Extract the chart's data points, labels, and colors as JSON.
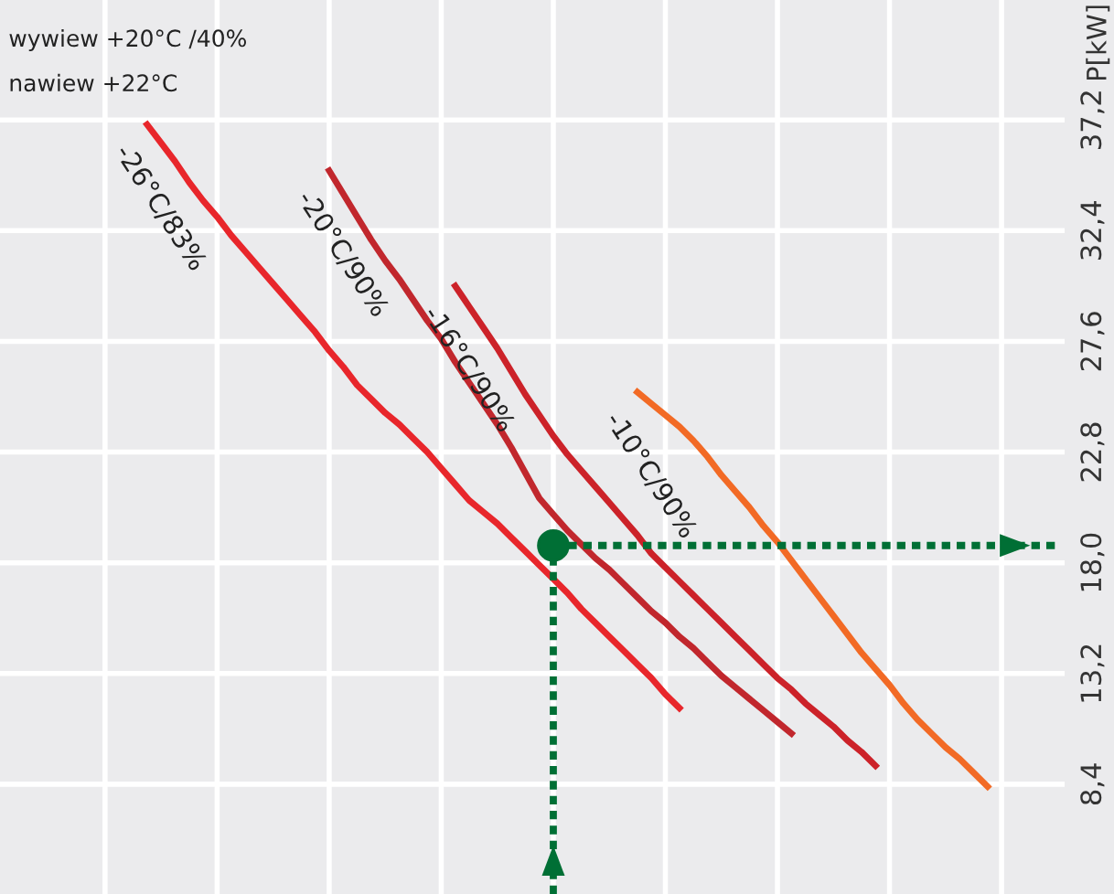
{
  "chart_data": {
    "type": "line",
    "ylabel": "P[kW]",
    "categories": [
      null,
      null,
      null,
      null,
      null,
      null,
      null,
      null,
      null,
      null,
      null,
      null,
      null,
      null,
      null,
      null,
      null,
      null,
      null,
      null,
      null,
      null,
      null,
      null,
      null,
      null,
      null,
      null,
      null,
      null,
      null,
      null,
      null,
      null,
      null,
      null,
      null,
      null,
      null,
      null,
      null,
      null,
      null,
      null,
      null,
      null,
      null,
      null,
      null,
      null,
      null,
      null,
      null,
      null,
      null,
      null,
      null,
      null,
      null,
      null,
      null,
      null,
      null,
      null,
      null,
      null,
      null,
      null,
      null,
      null,
      null,
      null,
      null,
      null,
      null,
      null
    ],
    "ylim": [
      3.64,
      42.4
    ],
    "yticks": [
      {
        "value": 8.4,
        "label": "8,4"
      },
      {
        "value": 13.2,
        "label": "13,2"
      },
      {
        "value": 18.0,
        "label": "18,0"
      },
      {
        "value": 22.8,
        "label": "22,8"
      },
      {
        "value": 27.6,
        "label": "27,6"
      },
      {
        "value": 32.4,
        "label": "32,4"
      },
      {
        "value": 37.2,
        "label": "37,2"
      }
    ],
    "tick_labels": "y",
    "grid": true,
    "legend": false,
    "marker": "none",
    "line_style": "solid",
    "series": [
      {
        "name": "-26°C/83%",
        "color": "#e8262b",
        "values": [
          null,
          null,
          null,
          null,
          null,
          null,
          null,
          null,
          null,
          null,
          37.0,
          36.2,
          35.4,
          34.5,
          33.7,
          33.0,
          32.2,
          31.5,
          30.8,
          30.1,
          29.4,
          28.7,
          28.0,
          27.2,
          26.5,
          25.7,
          25.1,
          24.5,
          24.0,
          23.4,
          22.8,
          22.1,
          21.4,
          20.7,
          20.2,
          19.7,
          19.1,
          18.5,
          17.9,
          17.3,
          16.7,
          16.0,
          15.4,
          14.8,
          14.2,
          13.6,
          13.0,
          12.3,
          11.7,
          null,
          null,
          null,
          null,
          null,
          null,
          null,
          null,
          null,
          null,
          null,
          null,
          null,
          null,
          null,
          null,
          null,
          null,
          null,
          null,
          null,
          null,
          null,
          null,
          null,
          null,
          null
        ]
      },
      {
        "name": "-20°C/90%",
        "color": "#c1272d",
        "values": [
          null,
          null,
          null,
          null,
          null,
          null,
          null,
          null,
          null,
          null,
          null,
          null,
          null,
          null,
          null,
          null,
          null,
          null,
          null,
          null,
          null,
          null,
          null,
          35.0,
          34.0,
          33.0,
          32.0,
          31.1,
          30.3,
          29.4,
          28.5,
          27.7,
          26.7,
          25.8,
          24.9,
          24.0,
          23.0,
          21.9,
          20.8,
          20.1,
          19.4,
          18.8,
          18.2,
          17.7,
          17.1,
          16.5,
          15.9,
          15.4,
          14.8,
          14.3,
          13.7,
          13.1,
          12.6,
          12.1,
          11.6,
          11.1,
          10.6,
          null,
          null,
          null,
          null,
          null,
          null,
          null,
          null,
          null,
          null,
          null,
          null,
          null,
          null,
          null,
          null,
          null,
          null,
          null
        ]
      },
      {
        "name": "-16°C/90%",
        "color": "#cc2229",
        "values": [
          null,
          null,
          null,
          null,
          null,
          null,
          null,
          null,
          null,
          null,
          null,
          null,
          null,
          null,
          null,
          null,
          null,
          null,
          null,
          null,
          null,
          null,
          null,
          null,
          null,
          null,
          null,
          null,
          null,
          null,
          null,
          null,
          30.0,
          29.1,
          28.2,
          27.3,
          26.3,
          25.3,
          24.4,
          23.5,
          22.7,
          22.0,
          21.3,
          20.6,
          19.9,
          19.2,
          18.4,
          17.8,
          17.2,
          16.6,
          16.0,
          15.4,
          14.8,
          14.2,
          13.6,
          13.0,
          12.5,
          11.9,
          11.4,
          10.9,
          10.3,
          9.8,
          9.2,
          null,
          null,
          null,
          null,
          null,
          null,
          null,
          null,
          null,
          null,
          null,
          null,
          null
        ]
      },
      {
        "name": "-10°C/90%",
        "color": "#f26a25",
        "values": [
          null,
          null,
          null,
          null,
          null,
          null,
          null,
          null,
          null,
          null,
          null,
          null,
          null,
          null,
          null,
          null,
          null,
          null,
          null,
          null,
          null,
          null,
          null,
          null,
          null,
          null,
          null,
          null,
          null,
          null,
          null,
          null,
          null,
          null,
          null,
          null,
          null,
          null,
          null,
          null,
          null,
          null,
          null,
          null,
          null,
          25.4,
          24.9,
          24.4,
          23.9,
          23.3,
          22.6,
          21.8,
          21.1,
          20.4,
          19.6,
          18.9,
          18.1,
          17.3,
          16.5,
          15.7,
          14.9,
          14.1,
          13.4,
          12.7,
          11.9,
          11.2,
          10.6,
          10.0,
          9.5,
          8.9,
          8.3,
          null,
          null,
          null,
          null,
          null
        ]
      },
      {
        "color": "#006f35",
        "line_style": "dotted",
        "values": [
          null,
          null,
          null,
          null,
          null,
          null,
          null,
          null,
          null,
          null,
          null,
          null,
          null,
          null,
          null,
          null,
          null,
          null,
          null,
          null,
          null,
          null,
          null,
          null,
          null,
          null,
          null,
          null,
          null,
          null,
          null,
          null,
          null,
          null,
          null,
          null,
          null,
          null,
          null,
          18.75,
          18.75,
          18.75,
          18.75,
          18.75,
          18.75,
          18.75,
          18.75,
          18.75,
          18.75,
          18.75,
          18.75,
          18.75,
          18.75,
          18.75,
          18.75,
          18.75,
          18.75,
          18.75,
          18.75,
          18.75,
          18.75,
          18.75,
          18.75,
          18.75,
          18.75,
          18.75,
          18.75,
          18.75,
          18.75,
          18.75,
          18.75,
          18.75,
          18.75,
          18.75,
          18.75,
          18.75
        ]
      },
      {
        "type": "scatter",
        "color": "#006f35",
        "marker": "circle",
        "values": [
          null,
          null,
          null,
          null,
          null,
          null,
          null,
          null,
          null,
          null,
          null,
          null,
          null,
          null,
          null,
          null,
          null,
          null,
          null,
          null,
          null,
          null,
          null,
          null,
          null,
          null,
          null,
          null,
          null,
          null,
          null,
          null,
          null,
          null,
          null,
          null,
          null,
          null,
          null,
          18.75,
          null,
          null,
          null,
          null,
          null,
          null,
          null,
          null,
          null,
          null,
          null,
          null,
          null,
          null,
          null,
          null,
          null,
          null,
          null,
          null,
          null,
          null,
          null,
          null,
          null,
          null,
          null,
          null,
          null,
          null,
          null,
          null,
          null,
          null,
          null,
          null
        ]
      }
    ],
    "annotations": [
      "wywiew +20°C /40%",
      "nawiew +22°C"
    ]
  }
}
